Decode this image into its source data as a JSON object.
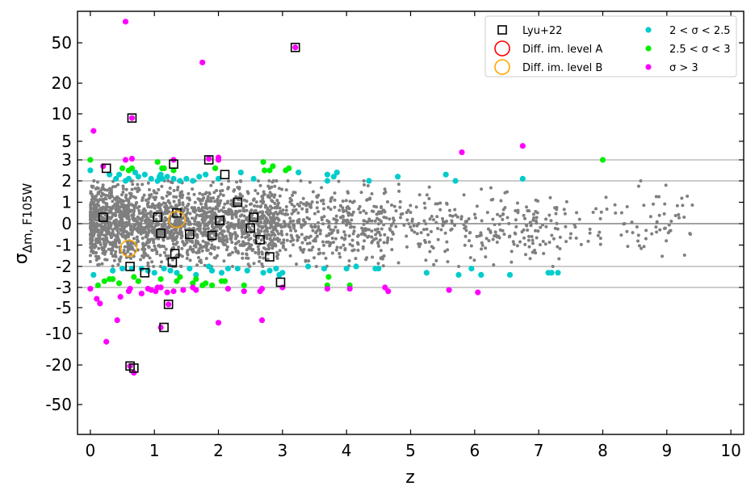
{
  "chart_data": {
    "type": "scatter",
    "title": "",
    "xlabel": "z",
    "ylabel_base": "σ",
    "ylabel_sub": "Δm, F105W",
    "xlim": [
      -0.2,
      10.2
    ],
    "x_ticks": [
      0,
      1,
      2,
      3,
      4,
      5,
      6,
      7,
      8,
      9,
      10
    ],
    "y_scale": "symmetric-log",
    "y_ticks": [
      -50,
      -20,
      -10,
      -5,
      -3,
      -2,
      -1,
      0,
      1,
      2,
      3,
      5,
      10,
      20,
      50
    ],
    "y_tick_labels": [
      "-50",
      "-20",
      "-10",
      "-5",
      "-3",
      "-2",
      "-1",
      "0",
      "1",
      "2",
      "3",
      "5",
      "10",
      "20",
      "50"
    ],
    "reference_lines_y": [
      -3,
      -2,
      2,
      3
    ],
    "zero_line_y": 0,
    "legend_position": "top-right",
    "legend": [
      {
        "label": "Lyu+22",
        "marker": "square",
        "color": "#000000"
      },
      {
        "label": "Diff. im. level A",
        "marker": "circle-open",
        "color": "#ff0000"
      },
      {
        "label": "Diff. im. level B",
        "marker": "circle-open",
        "color": "#ffa500"
      },
      {
        "label": "2 < σ < 2.5",
        "marker": "dot",
        "color": "#00cccc"
      },
      {
        "label": "2.5 < σ < 3",
        "marker": "dot",
        "color": "#00ee00"
      },
      {
        "label": "σ > 3",
        "marker": "dot",
        "color": "#ff00ff"
      }
    ],
    "background_population": {
      "color": "#7f7f7f",
      "range": [
        -2,
        2
      ],
      "note": "dense population |σ| < 2, concentrated at z < 3, sparser to z ≈ 9.3"
    },
    "series": [
      {
        "name": "2 < σ < 2.5",
        "color": "#00cccc",
        "points": [
          [
            0.0,
            2.5
          ],
          [
            0.05,
            -2.4
          ],
          [
            0.3,
            2.3
          ],
          [
            0.35,
            -2.2
          ],
          [
            0.4,
            2.1
          ],
          [
            0.45,
            2.3
          ],
          [
            0.5,
            -2.1
          ],
          [
            0.55,
            2.0
          ],
          [
            0.6,
            2.1
          ],
          [
            0.65,
            -2.1
          ],
          [
            0.7,
            2.4
          ],
          [
            0.75,
            2.2
          ],
          [
            0.8,
            -2.1
          ],
          [
            0.85,
            2.3
          ],
          [
            0.9,
            -2.2
          ],
          [
            0.95,
            2.1
          ],
          [
            1.0,
            -2.3
          ],
          [
            1.05,
            2.0
          ],
          [
            1.08,
            2.2
          ],
          [
            1.1,
            2.3
          ],
          [
            1.12,
            2.1
          ],
          [
            1.15,
            -2.1
          ],
          [
            1.2,
            2.2
          ],
          [
            1.25,
            -2.2
          ],
          [
            1.3,
            2.1
          ],
          [
            1.35,
            -2.3
          ],
          [
            1.4,
            2.0
          ],
          [
            1.5,
            2.1
          ],
          [
            1.55,
            -2.1
          ],
          [
            1.6,
            2.0
          ],
          [
            1.65,
            -2.4
          ],
          [
            1.7,
            2.2
          ],
          [
            1.8,
            2.3
          ],
          [
            1.85,
            -2.0
          ],
          [
            1.9,
            -2.2
          ],
          [
            2.0,
            2.1
          ],
          [
            2.05,
            -2.3
          ],
          [
            2.15,
            -2.1
          ],
          [
            2.3,
            -2.1
          ],
          [
            2.35,
            2.4
          ],
          [
            2.45,
            -2.2
          ],
          [
            2.55,
            2.1
          ],
          [
            2.7,
            -2.3
          ],
          [
            2.8,
            -2.2
          ],
          [
            2.9,
            -2.1
          ],
          [
            2.95,
            -2.4
          ],
          [
            3.0,
            -2.3
          ],
          [
            3.25,
            2.4
          ],
          [
            3.4,
            -2.0
          ],
          [
            3.65,
            -2.1
          ],
          [
            3.7,
            2.0
          ],
          [
            3.7,
            2.3
          ],
          [
            3.8,
            2.2
          ],
          [
            3.85,
            2.4
          ],
          [
            4.0,
            -2.1
          ],
          [
            4.15,
            -2.0
          ],
          [
            4.35,
            2.0
          ],
          [
            4.45,
            -2.1
          ],
          [
            4.5,
            -2.1
          ],
          [
            4.8,
            2.2
          ],
          [
            5.25,
            -2.3
          ],
          [
            5.55,
            2.3
          ],
          [
            5.7,
            2.0
          ],
          [
            5.75,
            -2.4
          ],
          [
            5.95,
            -2.1
          ],
          [
            6.1,
            -2.4
          ],
          [
            6.55,
            -2.4
          ],
          [
            6.75,
            2.1
          ],
          [
            7.15,
            -2.3
          ],
          [
            7.2,
            -2.3
          ],
          [
            7.3,
            -2.3
          ]
        ]
      },
      {
        "name": "2.5 < σ < 3",
        "color": "#00ee00",
        "points": [
          [
            0.0,
            3.0
          ],
          [
            0.12,
            -2.9
          ],
          [
            0.22,
            -2.7
          ],
          [
            0.3,
            -2.6
          ],
          [
            0.35,
            -2.6
          ],
          [
            0.45,
            -2.8
          ],
          [
            0.5,
            2.6
          ],
          [
            0.6,
            2.5
          ],
          [
            0.65,
            2.6
          ],
          [
            0.68,
            -2.5
          ],
          [
            0.75,
            -2.7
          ],
          [
            1.05,
            2.9
          ],
          [
            1.1,
            -2.6
          ],
          [
            1.12,
            2.6
          ],
          [
            1.15,
            2.6
          ],
          [
            1.3,
            2.5
          ],
          [
            1.35,
            -2.7
          ],
          [
            1.4,
            -2.5
          ],
          [
            1.6,
            -2.8
          ],
          [
            1.65,
            -2.6
          ],
          [
            1.75,
            -2.9
          ],
          [
            1.8,
            -2.8
          ],
          [
            1.9,
            -2.9
          ],
          [
            1.95,
            2.6
          ],
          [
            2.05,
            -2.7
          ],
          [
            2.1,
            -2.7
          ],
          [
            2.4,
            -2.9
          ],
          [
            2.7,
            2.9
          ],
          [
            2.72,
            2.5
          ],
          [
            2.8,
            2.5
          ],
          [
            2.85,
            2.7
          ],
          [
            3.05,
            2.5
          ],
          [
            3.1,
            2.6
          ],
          [
            3.7,
            -2.9
          ],
          [
            3.72,
            -2.5
          ],
          [
            4.05,
            -2.9
          ],
          [
            8.0,
            3.0
          ]
        ]
      },
      {
        "name": "σ > 3",
        "color": "#ff00ff",
        "points": [
          [
            0.55,
            90.0
          ],
          [
            1.75,
            32.0
          ],
          [
            3.2,
            45.0
          ],
          [
            0.65,
            9.0
          ],
          [
            0.05,
            6.5
          ],
          [
            5.8,
            3.7
          ],
          [
            6.75,
            4.4
          ],
          [
            0.55,
            3.0
          ],
          [
            0.65,
            3.1
          ],
          [
            1.3,
            3.0
          ],
          [
            1.85,
            3.1
          ],
          [
            2.0,
            3.2
          ],
          [
            2.0,
            3.0
          ],
          [
            0.2,
            2.7
          ],
          [
            0.0,
            -3.1
          ],
          [
            0.1,
            -4.0
          ],
          [
            0.15,
            -4.5
          ],
          [
            0.25,
            -12.0
          ],
          [
            0.42,
            -7.0
          ],
          [
            0.47,
            -3.8
          ],
          [
            0.6,
            -3.3
          ],
          [
            0.62,
            -3.1
          ],
          [
            0.8,
            -3.5
          ],
          [
            0.9,
            -3.1
          ],
          [
            0.95,
            -3.2
          ],
          [
            1.02,
            -3.3
          ],
          [
            1.05,
            -3.0
          ],
          [
            1.1,
            -3.0
          ],
          [
            1.1,
            -8.5
          ],
          [
            1.2,
            -3.4
          ],
          [
            1.22,
            -4.6
          ],
          [
            1.3,
            -3.3
          ],
          [
            1.45,
            -3.2
          ],
          [
            1.6,
            -3.0
          ],
          [
            1.65,
            -3.2
          ],
          [
            2.0,
            -7.5
          ],
          [
            2.15,
            -3.1
          ],
          [
            2.4,
            -3.3
          ],
          [
            2.65,
            -3.3
          ],
          [
            2.68,
            -3.1
          ],
          [
            2.68,
            -7.0
          ],
          [
            3.0,
            -3.0
          ],
          [
            3.7,
            -3.1
          ],
          [
            4.05,
            -3.1
          ],
          [
            4.6,
            -3.0
          ],
          [
            4.65,
            -3.3
          ],
          [
            5.6,
            -3.2
          ],
          [
            6.05,
            -3.4
          ],
          [
            0.62,
            -20.5
          ],
          [
            0.68,
            -24.0
          ]
        ]
      },
      {
        "name": "Lyu+22",
        "color": "#000000",
        "points": [
          [
            3.2,
            45.0
          ],
          [
            0.65,
            9.0
          ],
          [
            0.25,
            2.6
          ],
          [
            1.3,
            2.8
          ],
          [
            1.85,
            3.0
          ],
          [
            2.1,
            2.3
          ],
          [
            2.3,
            1.0
          ],
          [
            0.2,
            0.3
          ],
          [
            1.05,
            0.3
          ],
          [
            1.35,
            0.5
          ],
          [
            2.02,
            0.15
          ],
          [
            2.55,
            0.3
          ],
          [
            1.1,
            -0.45
          ],
          [
            1.55,
            -0.5
          ],
          [
            1.9,
            -0.55
          ],
          [
            2.5,
            -0.2
          ],
          [
            2.65,
            -0.75
          ],
          [
            2.8,
            -1.55
          ],
          [
            1.32,
            -1.4
          ],
          [
            1.28,
            -1.8
          ],
          [
            0.62,
            -2.0
          ],
          [
            0.85,
            -2.3
          ],
          [
            2.97,
            -2.75
          ],
          [
            1.22,
            -4.6
          ],
          [
            1.15,
            -8.5
          ],
          [
            0.62,
            -20.5
          ],
          [
            0.68,
            -21.5
          ]
        ]
      },
      {
        "name": "Diff. im. level B",
        "color": "#ffa500",
        "points": [
          [
            0.6,
            -1.15
          ],
          [
            1.35,
            0.2
          ]
        ]
      }
    ]
  }
}
